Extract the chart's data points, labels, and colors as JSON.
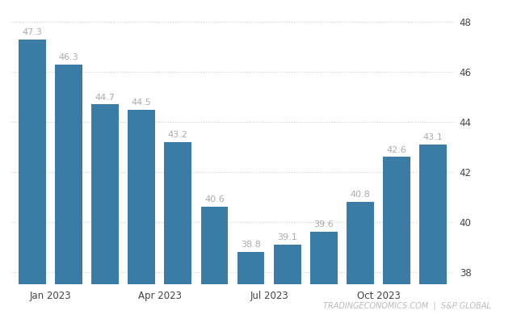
{
  "values": [
    47.3,
    46.3,
    44.7,
    44.5,
    43.2,
    40.6,
    38.8,
    39.1,
    39.6,
    40.8,
    42.6,
    43.1
  ],
  "bar_positions": [
    0,
    1,
    2,
    3,
    4,
    5,
    6,
    7,
    8,
    9,
    10,
    11
  ],
  "x_tick_positions": [
    0.5,
    3.5,
    6.5,
    9.5
  ],
  "x_tick_labels": [
    "Jan 2023",
    "Apr 2023",
    "Jul 2023",
    "Oct 2023"
  ],
  "y_min": 37.5,
  "y_max": 48.5,
  "y_ticks": [
    38,
    40,
    42,
    44,
    46,
    48
  ],
  "bar_color": "#3a7ca5",
  "label_color": "#aaaaaa",
  "background_color": "#ffffff",
  "grid_color": "#cccccc",
  "watermark": "TRADINGECONOMICS.COM  |  S&P GLOBAL",
  "watermark_color": "#bbbbbb",
  "label_fontsize": 8.0,
  "tick_fontsize": 8.5,
  "watermark_fontsize": 7.0,
  "bar_width": 0.75
}
